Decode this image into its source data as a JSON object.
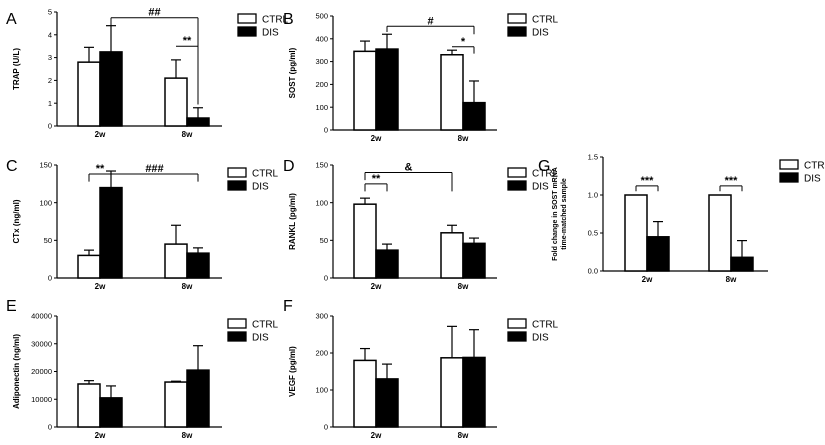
{
  "chart_data": [
    {
      "panel": "A",
      "type": "bar",
      "ylabel": "TRAP (U/L)",
      "ylim": [
        0,
        5
      ],
      "yticks": [
        0,
        1,
        2,
        3,
        4,
        5
      ],
      "categories": [
        "2w",
        "8w"
      ],
      "series": [
        {
          "name": "CTRL",
          "values": [
            2.8,
            2.1
          ],
          "errors": [
            0.65,
            0.8
          ]
        },
        {
          "name": "DIS",
          "values": [
            3.25,
            0.35
          ],
          "errors": [
            1.15,
            0.45
          ]
        }
      ],
      "legend": [
        "CTRL",
        "DIS"
      ],
      "annotations": [
        {
          "label": "##",
          "from": [
            0,
            1
          ],
          "to": [
            1,
            1
          ],
          "level": 4.75,
          "drop_to": [
            3.2,
            0.95
          ]
        },
        {
          "label": "**",
          "from": [
            1,
            0
          ],
          "to": [
            1,
            1
          ],
          "level": 3.5,
          "drop_to": [
            null,
            0.95
          ]
        }
      ]
    },
    {
      "panel": "B",
      "type": "bar",
      "ylabel": "SOST (pg/ml)",
      "ylim": [
        0,
        500
      ],
      "yticks": [
        0,
        100,
        200,
        300,
        400,
        500
      ],
      "categories": [
        "2w",
        "8w"
      ],
      "series": [
        {
          "name": "CTRL",
          "values": [
            345,
            330
          ],
          "errors": [
            45,
            20
          ]
        },
        {
          "name": "DIS",
          "values": [
            355,
            120
          ],
          "errors": [
            65,
            95
          ]
        }
      ],
      "legend": [
        "CTRL",
        "DIS"
      ],
      "annotations": [
        {
          "label": "#",
          "from": [
            0,
            1
          ],
          "to": [
            1,
            1
          ],
          "level": 455,
          "drop_to": [
            430,
            420
          ]
        },
        {
          "label": "*",
          "from": [
            1,
            0
          ],
          "to": [
            1,
            1
          ],
          "level": 365,
          "drop_to": [
            null,
            335
          ]
        }
      ]
    },
    {
      "panel": "C",
      "type": "bar",
      "ylabel": "CTx (ng/ml)",
      "ylim": [
        0,
        150
      ],
      "yticks": [
        0,
        50,
        100,
        150
      ],
      "categories": [
        "2w",
        "8w"
      ],
      "series": [
        {
          "name": "CTRL",
          "values": [
            30,
            45
          ],
          "errors": [
            7,
            25
          ]
        },
        {
          "name": "DIS",
          "values": [
            120,
            33
          ],
          "errors": [
            22,
            7
          ]
        }
      ],
      "legend": [
        "CTRL",
        "DIS"
      ],
      "annotations": [
        {
          "label": "**",
          "from": [
            0,
            0
          ],
          "to": [
            0,
            1
          ],
          "level": 138,
          "drop_to": [
            128,
            null
          ]
        },
        {
          "label": "###",
          "from": [
            0,
            1
          ],
          "to": [
            1,
            1
          ],
          "level": 138,
          "drop_to": [
            null,
            128
          ]
        }
      ]
    },
    {
      "panel": "D",
      "type": "bar",
      "ylabel": "RANKL (pg/ml)",
      "ylim": [
        0,
        150
      ],
      "yticks": [
        0,
        50,
        100,
        150
      ],
      "categories": [
        "2w",
        "8w"
      ],
      "series": [
        {
          "name": "CTRL",
          "values": [
            98,
            60
          ],
          "errors": [
            8,
            10
          ]
        },
        {
          "name": "DIS",
          "values": [
            37,
            46
          ],
          "errors": [
            8,
            7
          ]
        }
      ],
      "legend": [
        "CTRL",
        "DIS"
      ],
      "annotations": [
        {
          "label": "**",
          "from": [
            0,
            0
          ],
          "to": [
            0,
            1
          ],
          "level": 125,
          "drop_to": [
            115,
            115
          ]
        },
        {
          "label": "&",
          "from": [
            0,
            0
          ],
          "to": [
            1,
            0
          ],
          "level": 140,
          "drop_to": [
            130,
            115
          ]
        }
      ]
    },
    {
      "panel": "E",
      "type": "bar",
      "ylabel": "Adiponectin (ng/ml)",
      "ylim": [
        0,
        40000
      ],
      "yticks": [
        0,
        10000,
        20000,
        30000,
        40000
      ],
      "categories": [
        "2w",
        "8w"
      ],
      "series": [
        {
          "name": "CTRL",
          "values": [
            15500,
            16200
          ],
          "errors": [
            1200,
            300
          ]
        },
        {
          "name": "DIS",
          "values": [
            10500,
            20500
          ],
          "errors": [
            4300,
            8800
          ]
        }
      ],
      "legend": [
        "CTRL",
        "DIS"
      ],
      "annotations": []
    },
    {
      "panel": "F",
      "type": "bar",
      "ylabel": "VEGF (pg/ml)",
      "ylim": [
        0,
        300
      ],
      "yticks": [
        0,
        100,
        200,
        300
      ],
      "categories": [
        "2w",
        "8w"
      ],
      "series": [
        {
          "name": "CTRL",
          "values": [
            180,
            187
          ],
          "errors": [
            32,
            85
          ]
        },
        {
          "name": "DIS",
          "values": [
            130,
            188
          ],
          "errors": [
            40,
            75
          ]
        }
      ],
      "legend": [
        "CTRL",
        "DIS"
      ],
      "annotations": []
    },
    {
      "panel": "G",
      "type": "bar",
      "ylabel": "Fold change in SOST mRNA",
      "ylabel2": "time-matched sample",
      "ylim": [
        0,
        1.5
      ],
      "yticks": [
        0.0,
        0.5,
        1.0,
        1.5
      ],
      "categories": [
        "2w",
        "8w"
      ],
      "series": [
        {
          "name": "CTRL",
          "values": [
            1.0,
            1.0
          ],
          "errors": [
            0,
            0
          ]
        },
        {
          "name": "DIS",
          "values": [
            0.45,
            0.18
          ],
          "errors": [
            0.2,
            0.22
          ]
        }
      ],
      "legend": [
        "CTRL",
        "DIS"
      ],
      "annotations": [
        {
          "label": "***",
          "from": [
            0,
            0
          ],
          "to": [
            0,
            1
          ],
          "level": 1.12,
          "drop_to": [
            1.05,
            1.05
          ]
        },
        {
          "label": "***",
          "from": [
            1,
            0
          ],
          "to": [
            1,
            1
          ],
          "level": 1.12,
          "drop_to": [
            1.05,
            1.05
          ]
        }
      ]
    }
  ]
}
